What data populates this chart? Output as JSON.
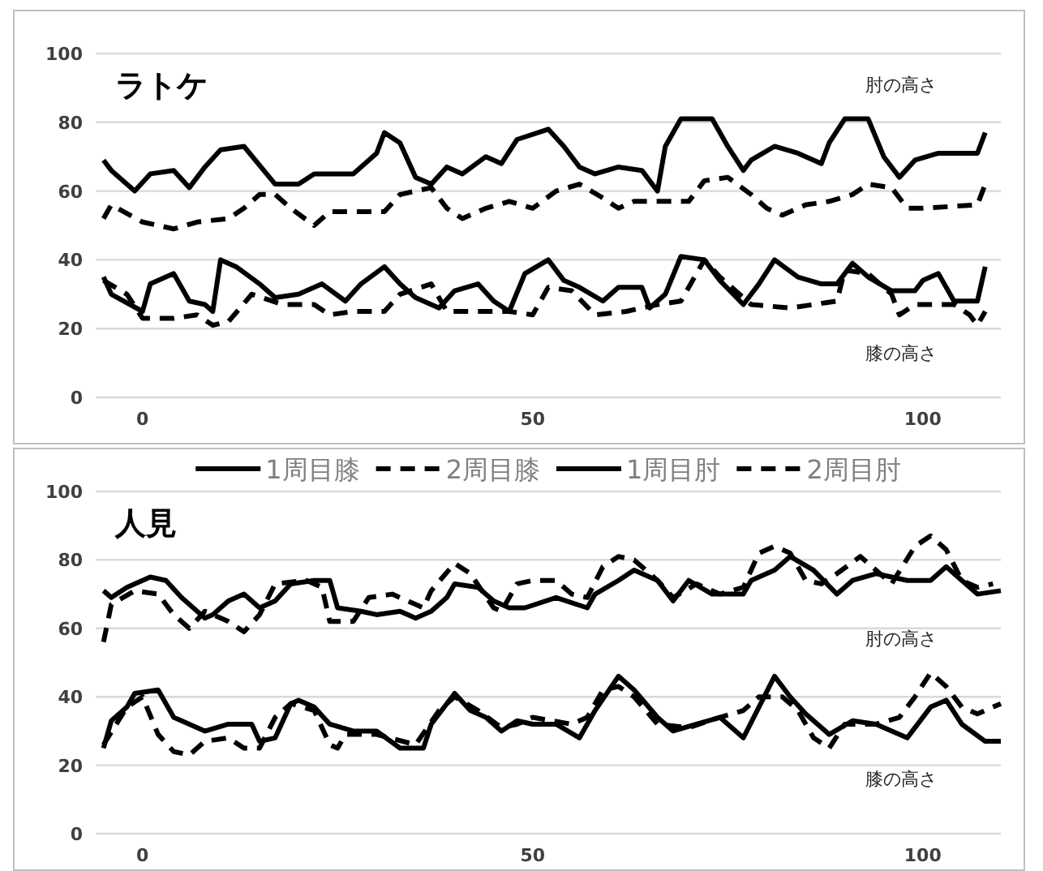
{
  "chart_data": [
    {
      "type": "line",
      "title": "ラトケ",
      "xlim": [
        -6,
        110
      ],
      "ylim": [
        0,
        100
      ],
      "xticks": [
        0,
        50,
        100
      ],
      "yticks": [
        0,
        20,
        40,
        60,
        80,
        100
      ],
      "grid": "y",
      "annotations": [
        "肘の高さ",
        "膝の高さ"
      ],
      "series": [
        {
          "color": "#000000",
          "line_style": "solid",
          "x": [
            -5,
            -4,
            0,
            1,
            3,
            4,
            6,
            8,
            9,
            10,
            12,
            15,
            17,
            20,
            23,
            26,
            28,
            31,
            33,
            35,
            38,
            40,
            43,
            45,
            47,
            49,
            52,
            54,
            56,
            59,
            61,
            64,
            65,
            67,
            69,
            72,
            74,
            77,
            79,
            81,
            84,
            87,
            89,
            91,
            93,
            96,
            99,
            100,
            102,
            104,
            107,
            108
          ],
          "values": [
            35,
            30,
            25,
            33,
            35,
            36,
            28,
            27,
            25,
            40,
            38,
            33,
            29,
            30,
            33,
            28,
            33,
            38,
            33,
            29,
            26,
            31,
            33,
            28,
            25,
            36,
            40,
            34,
            32,
            28,
            32,
            32,
            26,
            30,
            41,
            40,
            34,
            27,
            33,
            40,
            35,
            33,
            33,
            39,
            35,
            31,
            31,
            34,
            36,
            28,
            28,
            38
          ]
        },
        {
          "color": "#000000",
          "line_style": "dashed",
          "x": [
            -5,
            -2,
            0,
            4,
            7,
            9,
            11,
            14,
            18,
            22,
            24,
            27,
            31,
            33,
            37,
            39,
            42,
            45,
            47,
            50,
            52,
            55,
            58,
            62,
            66,
            69,
            71,
            72,
            74,
            77,
            78,
            83,
            89,
            90,
            93,
            96,
            97,
            99,
            104,
            106,
            107,
            108
          ],
          "values": [
            34,
            30,
            23,
            23,
            24,
            21,
            22,
            30,
            27,
            27,
            24,
            25,
            25,
            30,
            33,
            25,
            25,
            25,
            25,
            24,
            32,
            31,
            24,
            25,
            27,
            28,
            36,
            40,
            35,
            29,
            27,
            26,
            28,
            37,
            36,
            30,
            24,
            27,
            27,
            24,
            21,
            25
          ]
        },
        {
          "color": "#000000",
          "line_style": "solid",
          "x": [
            -5,
            -4,
            -1,
            1,
            4,
            6,
            8,
            10,
            13,
            17,
            20,
            22,
            27,
            30,
            31,
            33,
            35,
            37,
            39,
            41,
            44,
            46,
            48,
            52,
            54,
            56,
            58,
            61,
            64,
            66,
            67,
            69,
            73,
            75,
            77,
            78,
            81,
            84,
            87,
            88,
            90,
            93,
            95,
            97,
            99,
            102,
            107,
            108
          ],
          "values": [
            69,
            66,
            60,
            65,
            66,
            61,
            67,
            72,
            73,
            62,
            62,
            65,
            65,
            71,
            77,
            74,
            64,
            62,
            67,
            65,
            70,
            68,
            75,
            78,
            73,
            67,
            65,
            67,
            66,
            60,
            73,
            81,
            81,
            73,
            66,
            69,
            73,
            71,
            68,
            74,
            81,
            81,
            70,
            64,
            69,
            71,
            71,
            77
          ]
        },
        {
          "color": "#000000",
          "line_style": "dashed",
          "x": [
            -5,
            -4,
            0,
            4,
            7,
            11,
            13,
            15,
            17,
            19,
            22,
            24,
            31,
            33,
            35,
            37,
            39,
            41,
            44,
            47,
            50,
            53,
            56,
            59,
            61,
            63,
            70,
            72,
            75,
            78,
            80,
            82,
            85,
            88,
            91,
            93,
            96,
            98,
            100,
            107,
            108
          ],
          "values": [
            52,
            56,
            51,
            49,
            51,
            52,
            55,
            59,
            59,
            55,
            50,
            54,
            54,
            59,
            60,
            61,
            55,
            52,
            55,
            57,
            55,
            60,
            62,
            58,
            55,
            57,
            57,
            63,
            64,
            59,
            55,
            53,
            56,
            57,
            59,
            62,
            61,
            55,
            55,
            56,
            62
          ]
        }
      ]
    },
    {
      "type": "line",
      "title": "人見",
      "xlim": [
        -6,
        110
      ],
      "ylim": [
        0,
        100
      ],
      "xticks": [
        0,
        50,
        100
      ],
      "yticks": [
        0,
        20,
        40,
        60,
        80,
        100
      ],
      "grid": "y",
      "legend": "top",
      "annotations": [
        "肘の高さ",
        "膝の高さ"
      ],
      "series": [
        {
          "name": "1周目膝",
          "color": "#000000",
          "line_style": "solid",
          "x": [
            -5,
            -4,
            -2,
            -1,
            2,
            4,
            6,
            8,
            11,
            14,
            15,
            17,
            19,
            20,
            22,
            24,
            27,
            30,
            33,
            36,
            37,
            40,
            42,
            44,
            46,
            48,
            50,
            53,
            56,
            58,
            61,
            63,
            66,
            68,
            71,
            74,
            77,
            79,
            81,
            83,
            85,
            88,
            91,
            94,
            98,
            101,
            103,
            105,
            108,
            110
          ],
          "values": [
            25,
            33,
            37,
            41,
            42,
            34,
            32,
            30,
            32,
            32,
            27,
            28,
            38,
            39,
            37,
            32,
            30,
            30,
            25,
            25,
            32,
            41,
            36,
            34,
            30,
            33,
            32,
            32,
            28,
            36,
            46,
            42,
            34,
            30,
            32,
            34,
            28,
            37,
            46,
            40,
            35,
            29,
            33,
            32,
            28,
            37,
            39,
            32,
            27,
            27
          ]
        },
        {
          "name": "2周目膝",
          "color": "#000000",
          "line_style": "dashed",
          "x": [
            -5,
            -2,
            0,
            2,
            4,
            6,
            8,
            11,
            13,
            15,
            17,
            19,
            22,
            24,
            25,
            26,
            30,
            35,
            38,
            40,
            43,
            46,
            48,
            50,
            55,
            57,
            59,
            61,
            63,
            66,
            70,
            74,
            77,
            79,
            82,
            84,
            86,
            88,
            90,
            94,
            97,
            99,
            101,
            103,
            105,
            107,
            110
          ],
          "values": [
            26,
            37,
            40,
            29,
            24,
            23,
            27,
            28,
            25,
            25,
            34,
            38,
            36,
            26,
            25,
            29,
            29,
            26,
            36,
            40,
            36,
            31,
            32,
            34,
            32,
            34,
            42,
            43,
            40,
            32,
            31,
            34,
            36,
            40,
            40,
            36,
            28,
            25,
            32,
            32,
            34,
            40,
            47,
            43,
            37,
            35,
            38
          ]
        },
        {
          "name": "1周目肘",
          "color": "#000000",
          "line_style": "solid",
          "x": [
            -5,
            -4,
            -2,
            1,
            3,
            5,
            8,
            9,
            11,
            13,
            15,
            17,
            19,
            22,
            24,
            25,
            28,
            30,
            33,
            35,
            37,
            39,
            40,
            43,
            45,
            47,
            49,
            53,
            57,
            58,
            61,
            63,
            66,
            68,
            70,
            73,
            77,
            78,
            81,
            83,
            86,
            89,
            91,
            94,
            98,
            101,
            103,
            105,
            107,
            110
          ],
          "values": [
            71,
            69,
            72,
            75,
            74,
            69,
            63,
            64,
            68,
            70,
            66,
            68,
            73,
            74,
            74,
            66,
            65,
            64,
            65,
            63,
            65,
            69,
            73,
            72,
            68,
            66,
            66,
            69,
            66,
            70,
            74,
            77,
            74,
            68,
            74,
            70,
            70,
            74,
            77,
            81,
            77,
            70,
            74,
            76,
            74,
            74,
            78,
            74,
            70,
            71
          ]
        },
        {
          "name": "2周目肘",
          "color": "#000000",
          "line_style": "dashed",
          "x": [
            -5,
            -4,
            -1,
            2,
            4,
            6,
            8,
            11,
            13,
            15,
            17,
            21,
            23,
            24,
            27,
            29,
            32,
            36,
            37,
            40,
            42,
            45,
            46,
            48,
            50,
            53,
            55,
            57,
            59,
            61,
            63,
            66,
            68,
            71,
            74,
            77,
            79,
            81,
            83,
            85,
            87,
            89,
            92,
            94,
            96,
            99,
            101,
            103,
            105,
            107,
            109
          ],
          "values": [
            56,
            67,
            71,
            70,
            64,
            60,
            65,
            62,
            59,
            64,
            73,
            74,
            72,
            62,
            62,
            69,
            70,
            66,
            71,
            79,
            76,
            66,
            65,
            73,
            74,
            74,
            70,
            69,
            78,
            81,
            80,
            74,
            69,
            73,
            70,
            72,
            82,
            84,
            82,
            74,
            73,
            76,
            81,
            77,
            73,
            84,
            87,
            83,
            74,
            72,
            73
          ]
        }
      ]
    }
  ]
}
